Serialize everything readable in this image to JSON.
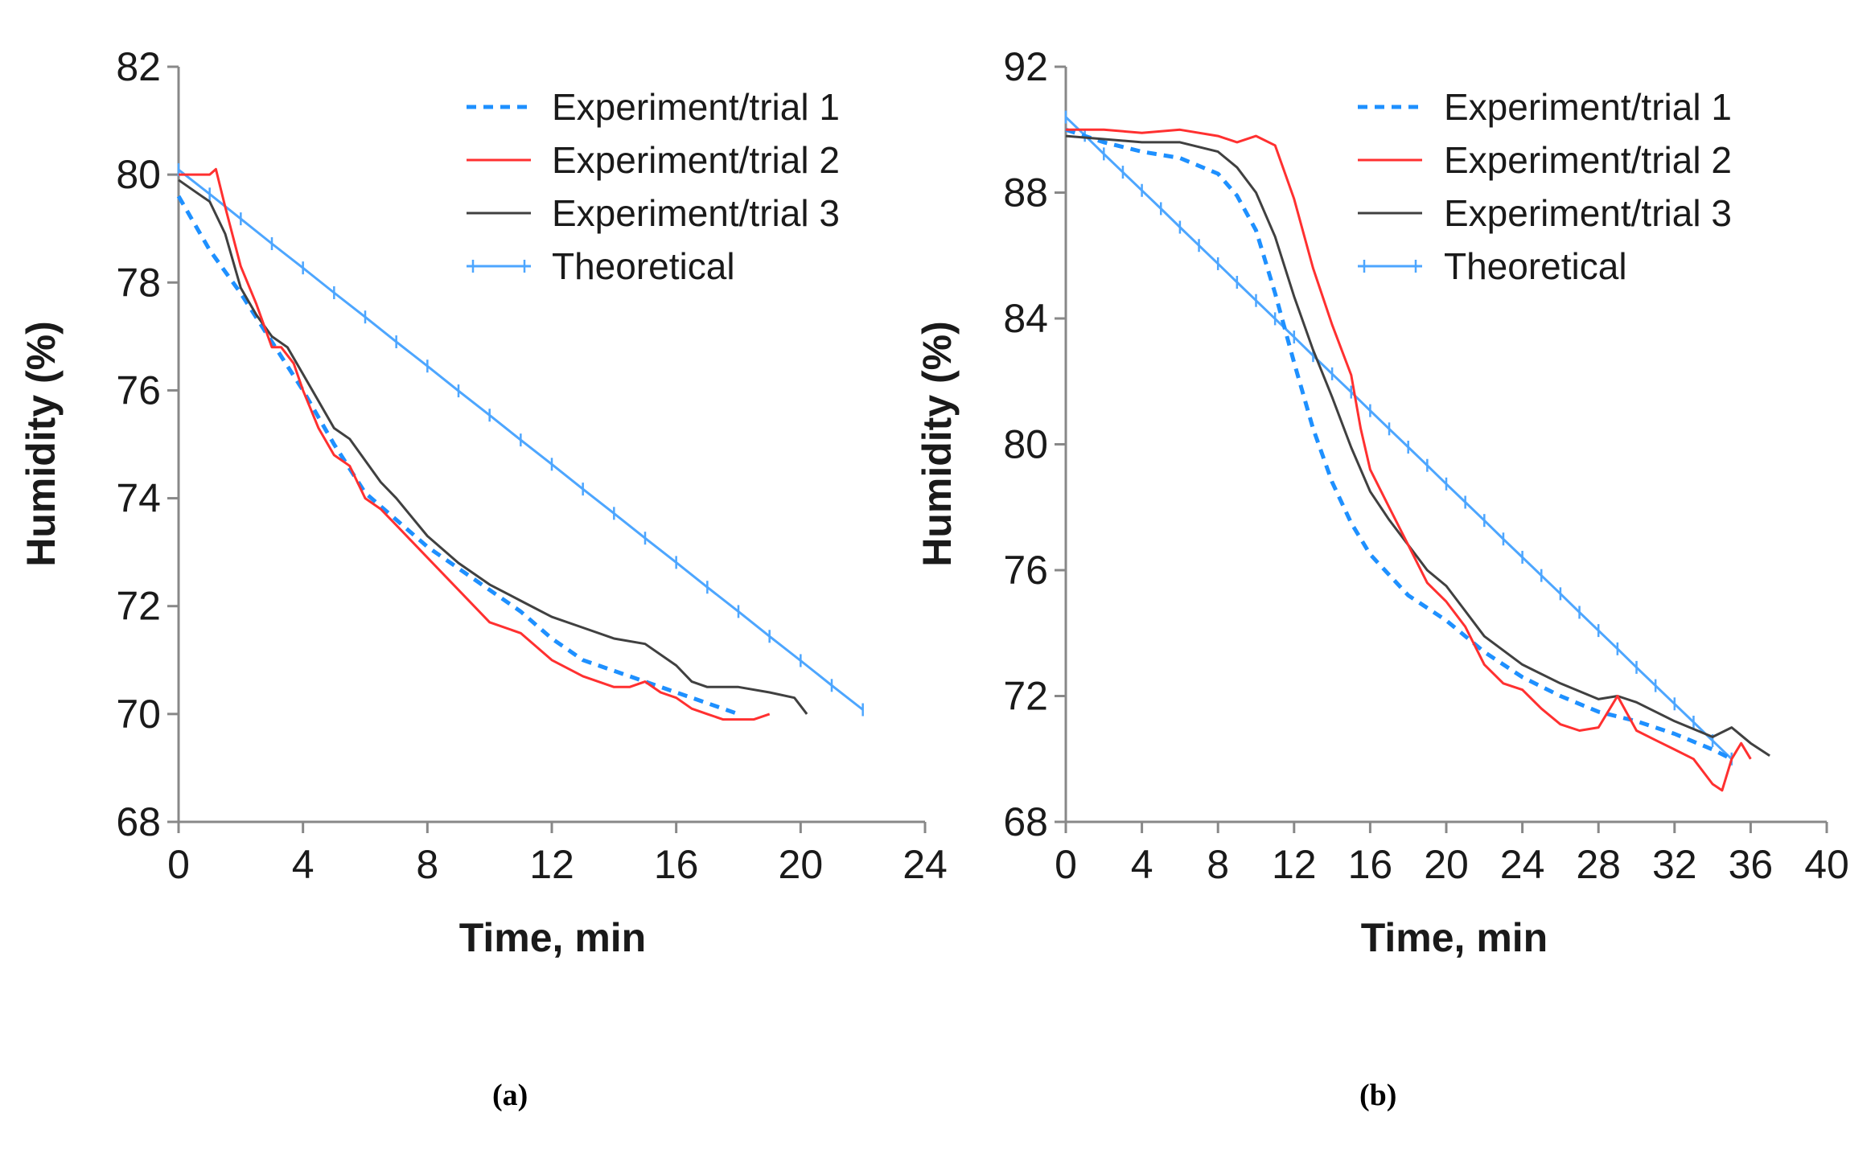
{
  "chart_data": [
    {
      "panel_label": "(a)",
      "type": "line",
      "title": "",
      "xlabel": "Time, min",
      "ylabel": "Humidity (%)",
      "xlim": [
        0,
        24
      ],
      "ylim": [
        68,
        82
      ],
      "xticks": [
        0,
        4,
        8,
        12,
        16,
        20,
        24
      ],
      "yticks": [
        68,
        70,
        72,
        74,
        76,
        78,
        80,
        82
      ],
      "grid": false,
      "legend_position": "top-right",
      "series": [
        {
          "name": "Experiment/trial 1",
          "color": "#1e90ff",
          "style": "dashed",
          "x": [
            0,
            1,
            2,
            3,
            4,
            5,
            6,
            7,
            8,
            9,
            10,
            11,
            12,
            13,
            14,
            15,
            16,
            17,
            18
          ],
          "y": [
            79.6,
            78.6,
            77.8,
            76.9,
            76.0,
            75.0,
            74.1,
            73.6,
            73.1,
            72.7,
            72.3,
            71.9,
            71.4,
            71.0,
            70.8,
            70.6,
            70.4,
            70.2,
            70.0
          ]
        },
        {
          "name": "Experiment/trial 2",
          "color": "#ff3030",
          "style": "solid",
          "x": [
            0,
            0.5,
            1,
            1.2,
            1.5,
            2,
            2.5,
            3,
            3.3,
            3.7,
            4,
            4.5,
            5,
            5.5,
            6,
            6.5,
            7,
            7.5,
            8,
            9,
            10,
            11,
            12,
            13,
            14,
            14.5,
            15,
            15.5,
            16,
            16.5,
            17,
            17.5,
            18,
            18.5,
            19
          ],
          "y": [
            80.0,
            80.0,
            80.0,
            80.1,
            79.4,
            78.3,
            77.6,
            76.8,
            76.8,
            76.5,
            76.0,
            75.3,
            74.8,
            74.6,
            74.0,
            73.8,
            73.5,
            73.2,
            72.9,
            72.3,
            71.7,
            71.5,
            71.0,
            70.7,
            70.5,
            70.5,
            70.6,
            70.4,
            70.3,
            70.1,
            70.0,
            69.9,
            69.9,
            69.9,
            70.0
          ]
        },
        {
          "name": "Experiment/trial 3",
          "color": "#404040",
          "style": "solid",
          "x": [
            0,
            0.5,
            1,
            1.5,
            2,
            2.5,
            3,
            3.5,
            4,
            4.5,
            5,
            5.5,
            6,
            6.5,
            7,
            8,
            9,
            10,
            11,
            12,
            13,
            14,
            15,
            16,
            16.5,
            17,
            18,
            19,
            19.8,
            20.2
          ],
          "y": [
            79.9,
            79.7,
            79.5,
            78.9,
            77.9,
            77.4,
            77.0,
            76.8,
            76.3,
            75.8,
            75.3,
            75.1,
            74.7,
            74.3,
            74.0,
            73.3,
            72.8,
            72.4,
            72.1,
            71.8,
            71.6,
            71.4,
            71.3,
            70.9,
            70.6,
            70.5,
            70.5,
            70.4,
            70.3,
            70.0
          ]
        },
        {
          "name": "Theoretical",
          "color": "#4da6ff",
          "style": "marker-line",
          "x": [
            0,
            1,
            2,
            3,
            4,
            5,
            6,
            7,
            8,
            9,
            10,
            11,
            12,
            13,
            14,
            15,
            16,
            17,
            18,
            19,
            20,
            21,
            22
          ],
          "y": [
            80.09,
            79.64,
            79.18,
            78.72,
            78.27,
            77.81,
            77.36,
            76.9,
            76.45,
            75.99,
            75.54,
            75.08,
            74.63,
            74.17,
            73.72,
            73.26,
            72.81,
            72.35,
            71.9,
            71.44,
            70.99,
            70.53,
            70.08
          ]
        }
      ]
    },
    {
      "panel_label": "(b)",
      "type": "line",
      "title": "",
      "xlabel": "Time, min",
      "ylabel": "Humidity (%)",
      "xlim": [
        0,
        40
      ],
      "ylim": [
        68,
        92
      ],
      "xticks": [
        0,
        4,
        8,
        12,
        16,
        20,
        24,
        28,
        32,
        36,
        40
      ],
      "yticks": [
        68,
        72,
        76,
        80,
        84,
        88,
        92
      ],
      "grid": false,
      "legend_position": "top-right",
      "series": [
        {
          "name": "Experiment/trial 1",
          "color": "#1e90ff",
          "style": "dashed",
          "x": [
            0,
            2,
            4,
            6,
            8,
            9,
            10,
            11,
            12,
            13,
            14,
            15,
            16,
            18,
            20,
            22,
            24,
            26,
            28,
            30,
            32,
            34,
            35
          ],
          "y": [
            90.0,
            89.6,
            89.3,
            89.1,
            88.6,
            87.9,
            86.8,
            84.8,
            82.6,
            80.5,
            78.8,
            77.5,
            76.5,
            75.2,
            74.4,
            73.4,
            72.6,
            72.0,
            71.5,
            71.2,
            70.8,
            70.3,
            70.0
          ]
        },
        {
          "name": "Experiment/trial 2",
          "color": "#ff3030",
          "style": "solid",
          "x": [
            0,
            2,
            4,
            6,
            8,
            9,
            10,
            11,
            12,
            13,
            14,
            15,
            15.5,
            16,
            17,
            18,
            19,
            20,
            21,
            22,
            23,
            24,
            25,
            26,
            27,
            28,
            29,
            30,
            31,
            32,
            33,
            34,
            34.5,
            35,
            35.5,
            36
          ],
          "y": [
            90.0,
            90.0,
            89.9,
            90.0,
            89.8,
            89.6,
            89.8,
            89.5,
            87.8,
            85.6,
            83.8,
            82.2,
            80.5,
            79.2,
            78.0,
            76.8,
            75.6,
            75.0,
            74.2,
            73.0,
            72.4,
            72.2,
            71.6,
            71.1,
            70.9,
            71.0,
            72.0,
            70.9,
            70.6,
            70.3,
            70.0,
            69.2,
            69.0,
            70.0,
            70.5,
            70.0
          ]
        },
        {
          "name": "Experiment/trial 3",
          "color": "#404040",
          "style": "solid",
          "x": [
            0,
            2,
            4,
            6,
            8,
            9,
            10,
            11,
            12,
            13,
            14,
            15,
            16,
            17,
            18,
            19,
            20,
            21,
            22,
            24,
            26,
            28,
            29,
            30,
            32,
            34,
            35,
            36,
            37
          ],
          "y": [
            89.8,
            89.7,
            89.6,
            89.6,
            89.3,
            88.8,
            88.0,
            86.6,
            84.7,
            83.0,
            81.5,
            79.9,
            78.5,
            77.6,
            76.8,
            76.0,
            75.5,
            74.7,
            73.9,
            73.0,
            72.4,
            71.9,
            72.0,
            71.8,
            71.2,
            70.7,
            71.0,
            70.5,
            70.1
          ]
        },
        {
          "name": "Theoretical",
          "color": "#4da6ff",
          "style": "marker-line",
          "x": [
            0,
            1,
            2,
            3,
            4,
            5,
            6,
            7,
            8,
            9,
            10,
            11,
            12,
            13,
            14,
            15,
            16,
            17,
            18,
            19,
            20,
            21,
            22,
            23,
            24,
            25,
            26,
            27,
            28,
            29,
            30,
            31,
            32,
            33,
            34,
            35
          ],
          "y": [
            90.4,
            89.82,
            89.23,
            88.65,
            88.07,
            87.49,
            86.9,
            86.32,
            85.74,
            85.15,
            84.57,
            83.99,
            83.41,
            82.82,
            82.24,
            81.66,
            81.07,
            80.49,
            79.91,
            79.33,
            78.74,
            78.16,
            77.58,
            76.99,
            76.41,
            75.83,
            75.25,
            74.66,
            74.08,
            73.5,
            72.91,
            72.33,
            71.75,
            71.17,
            70.58,
            70.0
          ]
        }
      ]
    }
  ]
}
